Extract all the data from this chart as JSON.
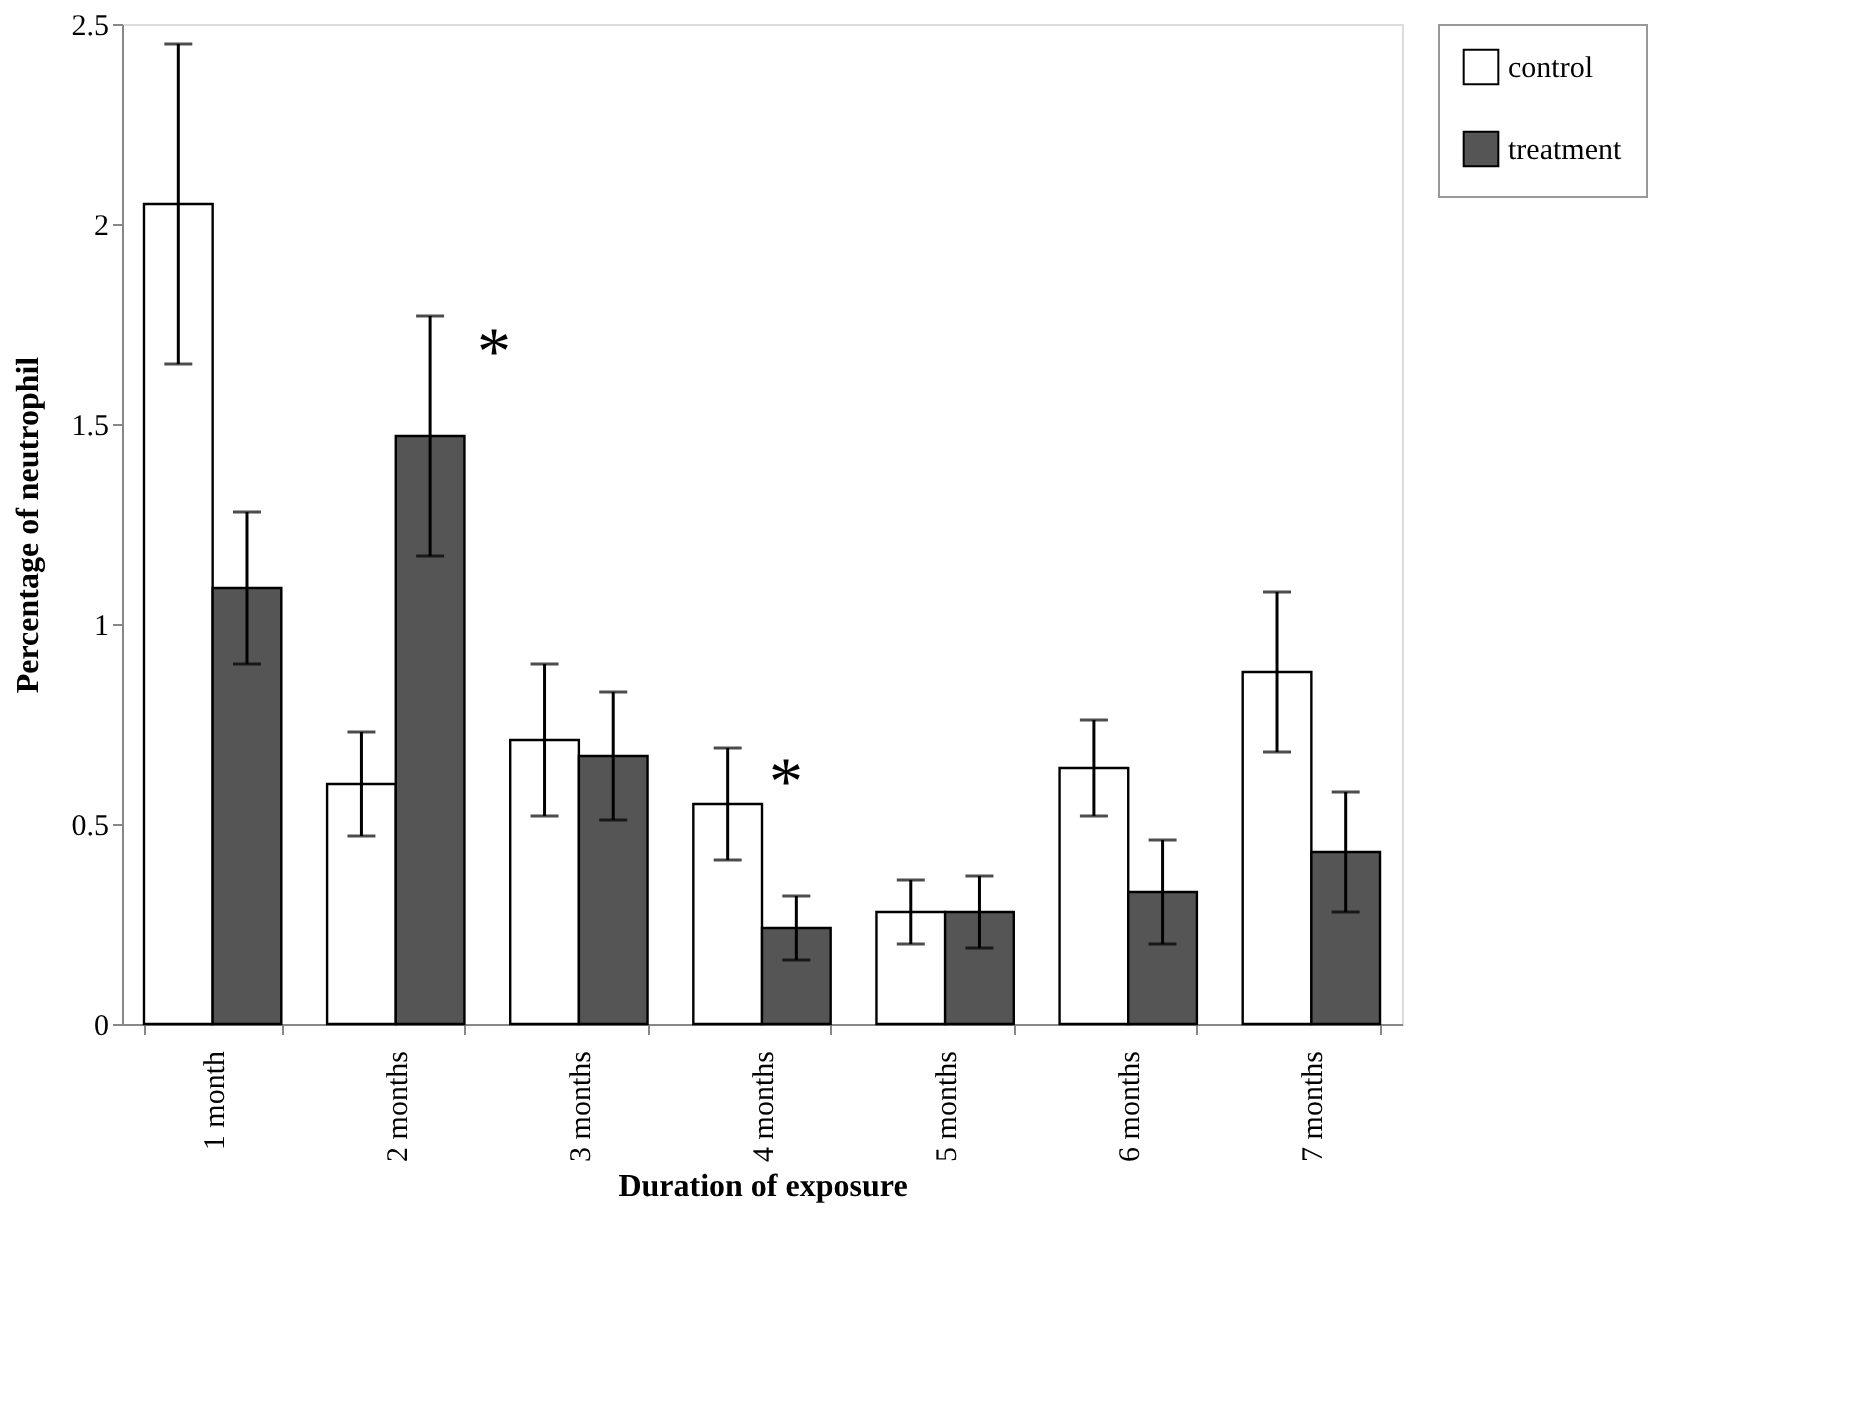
{
  "chart_data": {
    "type": "bar",
    "xlabel": "Duration of exposure",
    "ylabel": "Percentage of neutrophil",
    "categories": [
      "1 month",
      "2 months",
      "3 months",
      "4 months",
      "5 months",
      "6 months",
      "7 months"
    ],
    "series": [
      {
        "name": "control",
        "color": "#ffffff",
        "values": [
          2.05,
          0.6,
          0.71,
          0.55,
          0.28,
          0.64,
          0.88
        ],
        "errors": [
          0.4,
          0.13,
          0.19,
          0.14,
          0.08,
          0.12,
          0.2
        ]
      },
      {
        "name": "treatment",
        "color": "#555555",
        "values": [
          1.09,
          1.47,
          0.67,
          0.24,
          0.28,
          0.33,
          0.43
        ],
        "errors": [
          0.19,
          0.3,
          0.16,
          0.08,
          0.09,
          0.13,
          0.15
        ]
      }
    ],
    "ylim": [
      0,
      2.5
    ],
    "yticks": [
      0,
      0.5,
      1,
      1.5,
      2,
      2.5
    ],
    "grid": false,
    "legend": "right",
    "annotations": [
      "*",
      "*"
    ]
  }
}
